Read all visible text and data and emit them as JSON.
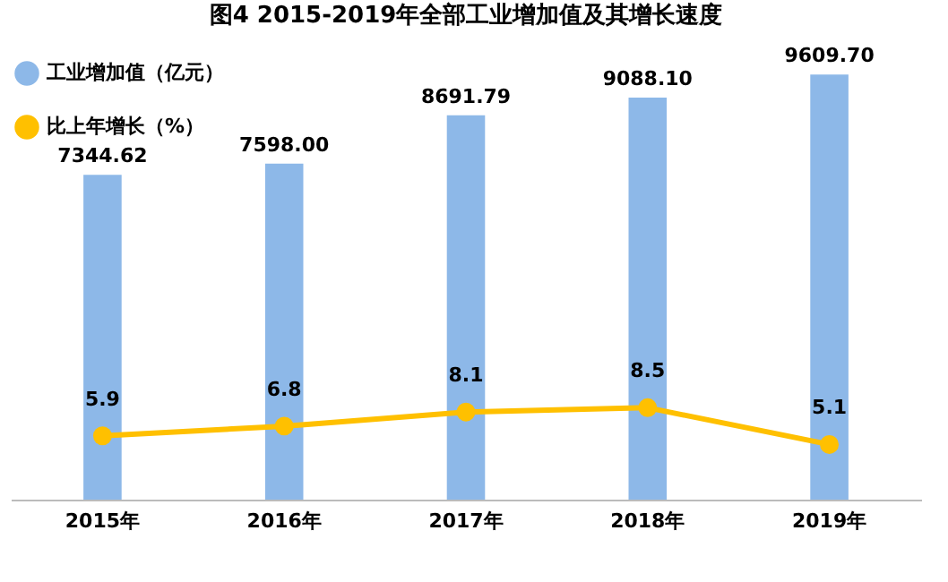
{
  "chart_data": {
    "type": "bar",
    "title": "图4 2015-2019年全部工业增加值及其增长速度",
    "categories": [
      "2015年",
      "2016年",
      "2017年",
      "2018年",
      "2019年"
    ],
    "series": [
      {
        "name": "工业增加值（亿元）",
        "color": "#8db8e8",
        "values": [
          7344.62,
          7598.0,
          8691.79,
          9088.1,
          9609.7
        ],
        "value_labels": [
          "7344.62",
          "7598.00",
          "8691.79",
          "9088.10",
          "9609.70"
        ]
      },
      {
        "name": "比上年增长（%）",
        "type": "line",
        "axis": "y2",
        "color": "#ffc000",
        "values": [
          5.9,
          6.8,
          8.1,
          8.5,
          5.1
        ],
        "value_labels": [
          "5.9",
          "6.8",
          "8.1",
          "8.5",
          "5.1"
        ]
      }
    ],
    "tick_labels": "x",
    "legend": "top left",
    "marker": "circle",
    "line_style": "solid"
  }
}
